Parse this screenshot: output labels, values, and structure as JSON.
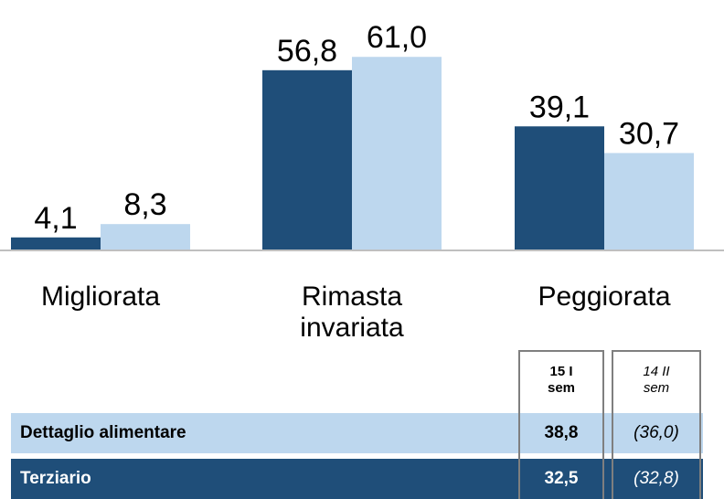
{
  "chart_data": {
    "type": "bar",
    "categories": [
      "Migliorata",
      "Rimasta invariata",
      "Peggiorata"
    ],
    "series": [
      {
        "color": "#1f4e79",
        "values": [
          4.1,
          56.8,
          39.1
        ],
        "value_labels": [
          "4,1",
          "56,8",
          "39,1"
        ]
      },
      {
        "color": "#bdd7ee",
        "values": [
          8.3,
          61.0,
          30.7
        ],
        "value_labels": [
          "8,3",
          "61,0",
          "30,7"
        ]
      }
    ],
    "ylim": [
      0,
      70
    ]
  },
  "table": {
    "columns": [
      "15 I sem",
      "14 II sem"
    ],
    "rows": [
      [
        "Dettaglio alimentare",
        "38,8",
        "(36,0)"
      ],
      [
        "Terziario",
        "32,5",
        "(32,8)"
      ]
    ],
    "row_colors": [
      "#bdd7ee",
      "#1f4e79"
    ]
  }
}
